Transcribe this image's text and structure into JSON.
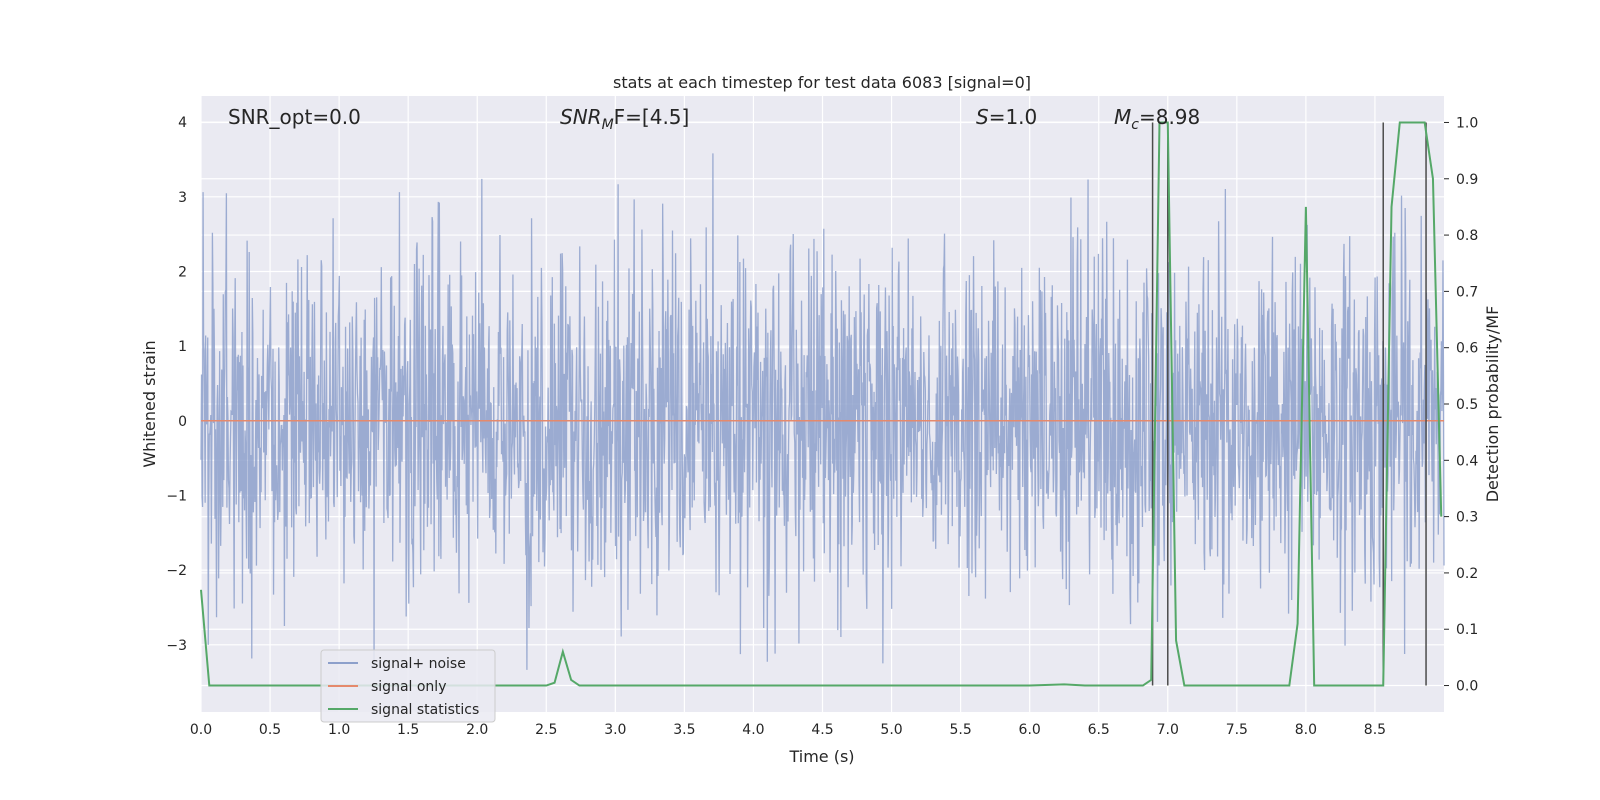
{
  "chart_data": {
    "type": "line",
    "title": "stats at each timestep for test data 6083 [signal=0]",
    "xlabel": "Time (s)",
    "ylabel": "Whitened strain",
    "y2label": "Detection probability/MF",
    "xlim": [
      0.0,
      9.0
    ],
    "ylim": [
      -3.9,
      4.35
    ],
    "y2lim": [
      -0.047,
      1.047
    ],
    "xticks": [
      0.0,
      0.5,
      1.0,
      1.5,
      2.0,
      2.5,
      3.0,
      3.5,
      4.0,
      4.5,
      5.0,
      5.5,
      6.0,
      6.5,
      7.0,
      7.5,
      8.0,
      8.5
    ],
    "yticks": [
      -3,
      -2,
      -1,
      0,
      1,
      2,
      3,
      4
    ],
    "y2ticks": [
      0.0,
      0.1,
      0.2,
      0.3,
      0.4,
      0.5,
      0.6,
      0.7,
      0.8,
      0.9,
      1.0
    ],
    "grid": true,
    "legend_position": "lower-left",
    "annotations": {
      "snr_opt": "SNR_opt=0.0",
      "snr_mf_main": "SNR",
      "snr_mf_sub": "M",
      "snr_mf_rest": "F=[4.5]",
      "s_main": "S",
      "s_rest": "=1.0",
      "mc_main": "M",
      "mc_sub": "c",
      "mc_rest": "=8.98"
    },
    "series": [
      {
        "name": "signal+ noise",
        "color": "#8da0cb",
        "description_of_values": "whitened Gaussian noise, range approx -3.4 to 4.0",
        "approx_range": [
          -3.4,
          4.0
        ]
      },
      {
        "name": "signal only",
        "color": "#e5896c",
        "x": [
          0.0,
          9.0
        ],
        "y": [
          0.0,
          0.0
        ]
      },
      {
        "name": "signal statistics",
        "color": "#55a868",
        "axis": "right",
        "x": [
          0.0,
          0.06,
          0.12,
          0.5,
          1.0,
          1.5,
          2.0,
          2.5,
          2.56,
          2.62,
          2.68,
          2.74,
          3.0,
          4.0,
          5.0,
          6.0,
          6.25,
          6.4,
          6.82,
          6.88,
          6.94,
          7.0,
          7.06,
          7.12,
          7.5,
          7.88,
          7.94,
          8.0,
          8.06,
          8.12,
          8.5,
          8.56,
          8.62,
          8.68,
          8.74,
          8.8,
          8.86,
          8.92,
          8.98
        ],
        "y": [
          0.17,
          0.0,
          0.0,
          0.0,
          0.0,
          0.0,
          0.0,
          0.0,
          0.005,
          0.06,
          0.01,
          0.0,
          0.0,
          0.0,
          0.0,
          0.0,
          0.002,
          0.0,
          0.0,
          0.01,
          1.0,
          1.0,
          0.08,
          0.0,
          0.0,
          0.0,
          0.11,
          0.85,
          0.0,
          0.0,
          0.0,
          0.0,
          0.85,
          1.0,
          1.0,
          1.0,
          1.0,
          0.9,
          0.3
        ]
      }
    ],
    "vlines": {
      "color": "#4c4c4c",
      "x": [
        6.89,
        7.0,
        8.56,
        8.87
      ],
      "y_from": 0.0,
      "y_to": 1.0,
      "axis": "right"
    }
  }
}
